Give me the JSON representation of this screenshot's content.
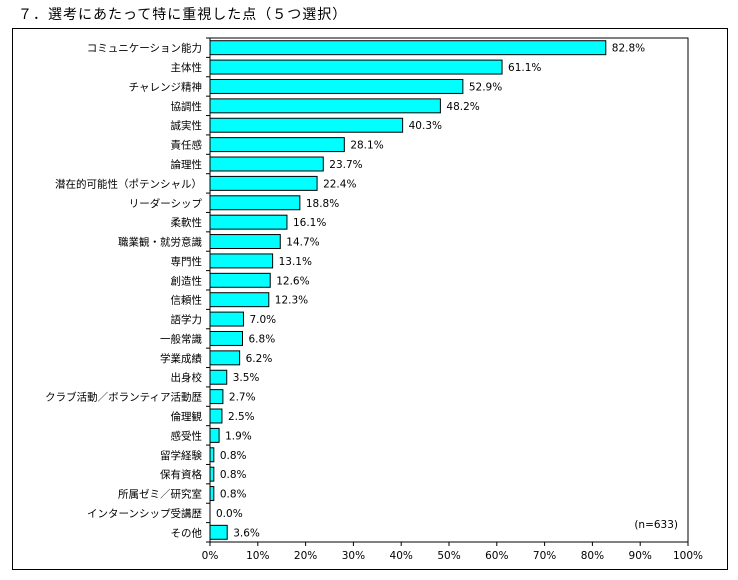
{
  "title": "７．選考にあたって特に重視した点（５つ選択）",
  "chart_data": {
    "type": "bar",
    "orientation": "horizontal",
    "title": "７．選考にあたって特に重視した点（５つ選択）",
    "categories": [
      "コミュニケーション能力",
      "主体性",
      "チャレンジ精神",
      "協調性",
      "誠実性",
      "責任感",
      "論理性",
      "潜在的可能性（ポテンシャル）",
      "リーダーシップ",
      "柔軟性",
      "職業観・就労意識",
      "専門性",
      "創造性",
      "信頼性",
      "語学力",
      "一般常識",
      "学業成績",
      "出身校",
      "クラブ活動／ボランティア活動歴",
      "倫理観",
      "感受性",
      "留学経験",
      "保有資格",
      "所属ゼミ／研究室",
      "インターンシップ受講歴",
      "その他"
    ],
    "values": [
      82.8,
      61.1,
      52.9,
      48.2,
      40.3,
      28.1,
      23.7,
      22.4,
      18.8,
      16.1,
      14.7,
      13.1,
      12.6,
      12.3,
      7.0,
      6.8,
      6.2,
      3.5,
      2.7,
      2.5,
      1.9,
      0.8,
      0.8,
      0.8,
      0.0,
      3.6
    ],
    "value_labels": [
      "82.8%",
      "61.1%",
      "52.9%",
      "48.2%",
      "40.3%",
      "28.1%",
      "23.7%",
      "22.4%",
      "18.8%",
      "16.1%",
      "14.7%",
      "13.1%",
      "12.6%",
      "12.3%",
      "7.0%",
      "6.8%",
      "6.2%",
      "3.5%",
      "2.7%",
      "2.5%",
      "1.9%",
      "0.8%",
      "0.8%",
      "0.8%",
      "0.0%",
      "3.6%"
    ],
    "xlim": [
      0,
      100
    ],
    "xticks": [
      "0%",
      "10%",
      "20%",
      "30%",
      "40%",
      "50%",
      "60%",
      "70%",
      "80%",
      "90%",
      "100%"
    ],
    "xlabel": "",
    "ylabel": "",
    "grid": false,
    "bar_color": "#00ffff",
    "annotation": "(n=633)"
  }
}
